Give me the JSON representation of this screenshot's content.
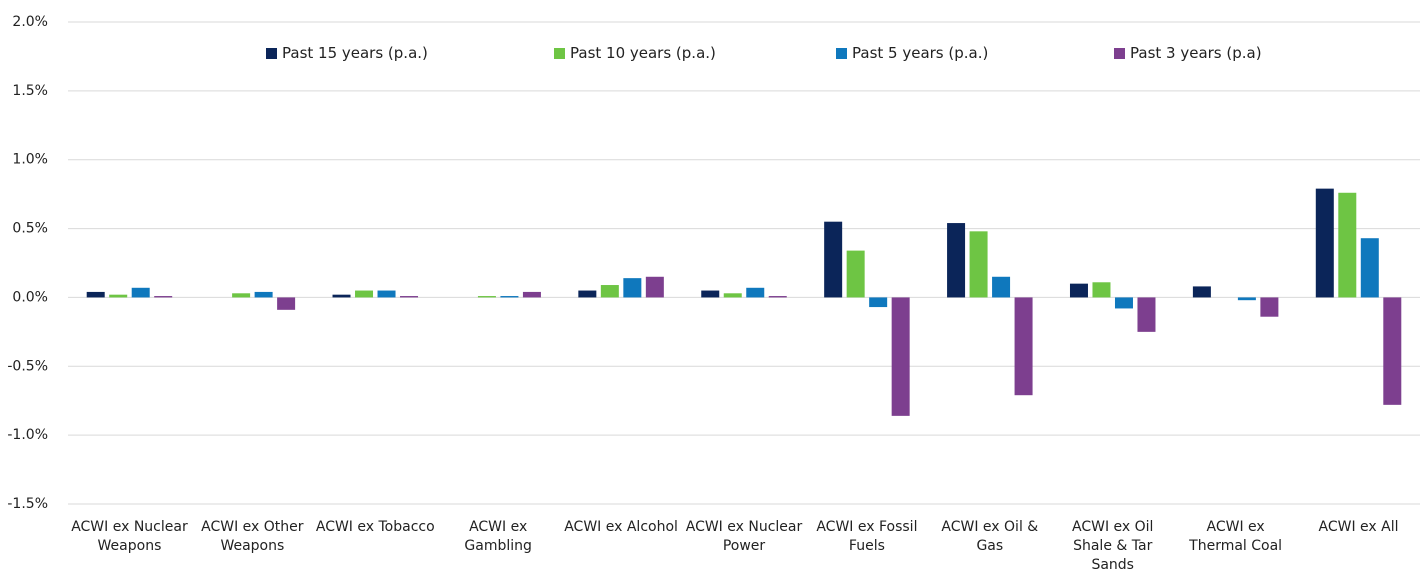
{
  "chart_data": {
    "type": "bar",
    "categories": [
      "ACWI ex Nuclear Weapons",
      "ACWI ex Other Weapons",
      "ACWI ex Tobacco",
      "ACWI ex Gambling",
      "ACWI ex Alcohol",
      "ACWI ex Nuclear Power",
      "ACWI ex Fossil Fuels",
      "ACWI ex Oil & Gas",
      "ACWI ex Oil Shale & Tar Sands",
      "ACWI ex Thermal Coal",
      "ACWI ex All"
    ],
    "series": [
      {
        "name": "Past 15 years (p.a.)",
        "color": "#0b2559",
        "values": [
          0.04,
          0,
          0.02,
          0,
          0.05,
          0.05,
          0.55,
          0.54,
          0.1,
          0.08,
          0.79
        ]
      },
      {
        "name": "Past 10 years (p.a.)",
        "color": "#6ec544",
        "values": [
          0.02,
          0.03,
          0.05,
          0.01,
          0.09,
          0.03,
          0.34,
          0.48,
          0.11,
          0,
          0.76
        ]
      },
      {
        "name": "Past 5 years (p.a.)",
        "color": "#0f78bd",
        "values": [
          0.07,
          0.04,
          0.05,
          0.01,
          0.14,
          0.07,
          -0.07,
          0.15,
          -0.08,
          -0.02,
          0.43
        ]
      },
      {
        "name": "Past 3 years (p.a)",
        "color": "#7d3f8f",
        "values": [
          0.01,
          -0.09,
          0.01,
          0.04,
          0.15,
          0.01,
          -0.86,
          -0.71,
          -0.25,
          -0.14,
          -0.78
        ]
      }
    ],
    "ylim": [
      -1.5,
      2.0
    ],
    "yticks": [
      {
        "value": -1.5,
        "label": "-1.5%"
      },
      {
        "value": -1.0,
        "label": "-1.0%"
      },
      {
        "value": -0.5,
        "label": "-0.5%"
      },
      {
        "value": 0.0,
        "label": "0.0%"
      },
      {
        "value": 0.5,
        "label": "0.5%"
      },
      {
        "value": 1.0,
        "label": "1.0%"
      },
      {
        "value": 1.5,
        "label": "1.5%"
      },
      {
        "value": 2.0,
        "label": "2.0%"
      }
    ],
    "grid": true,
    "legend": "top"
  }
}
